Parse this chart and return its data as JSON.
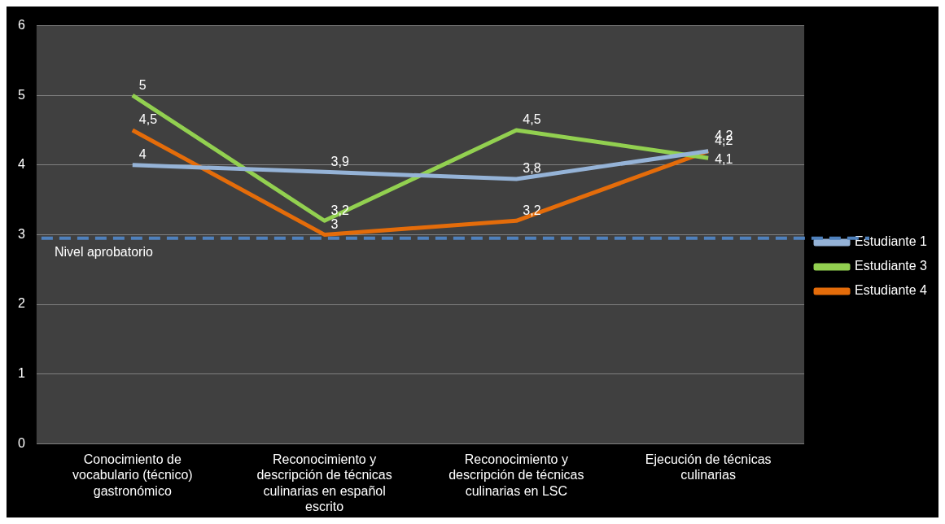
{
  "chart_data": {
    "type": "line",
    "categories": [
      "Conocimiento de vocabulario (técnico) gastronómico",
      "Reconocimiento y descripción de técnicas culinarias en español escrito",
      "Reconocimiento y descripción de técnicas culinarias en LSC",
      "Ejecución de técnicas culinarias"
    ],
    "series": [
      {
        "name": "Estudiante 1",
        "color": "#95b3d7",
        "values": [
          4,
          3.9,
          3.8,
          4.2
        ],
        "value_labels": [
          "4",
          "3,9",
          "3,8",
          "4,2"
        ]
      },
      {
        "name": "Estudiante 3",
        "color": "#92d050",
        "values": [
          5,
          3.2,
          4.5,
          4.1
        ],
        "value_labels": [
          "5",
          "3,2",
          "4,5",
          "4,1"
        ]
      },
      {
        "name": "Estudiante 4",
        "color": "#e46c0a",
        "values": [
          4.5,
          3,
          3.2,
          4.2
        ],
        "value_labels": [
          "4,5",
          "3",
          "3,2",
          "4,2"
        ]
      }
    ],
    "ylim": [
      0,
      6
    ],
    "yticks": [
      0,
      1,
      2,
      3,
      4,
      5,
      6
    ],
    "grid": "y",
    "legend": "right",
    "marker": "none",
    "line_style": "solid",
    "ref_lines": [
      {
        "axis": "y",
        "value": 2.95,
        "label": "Nivel aprobatorio",
        "color": "#4f81bd",
        "line_style": "dashed"
      }
    ]
  }
}
